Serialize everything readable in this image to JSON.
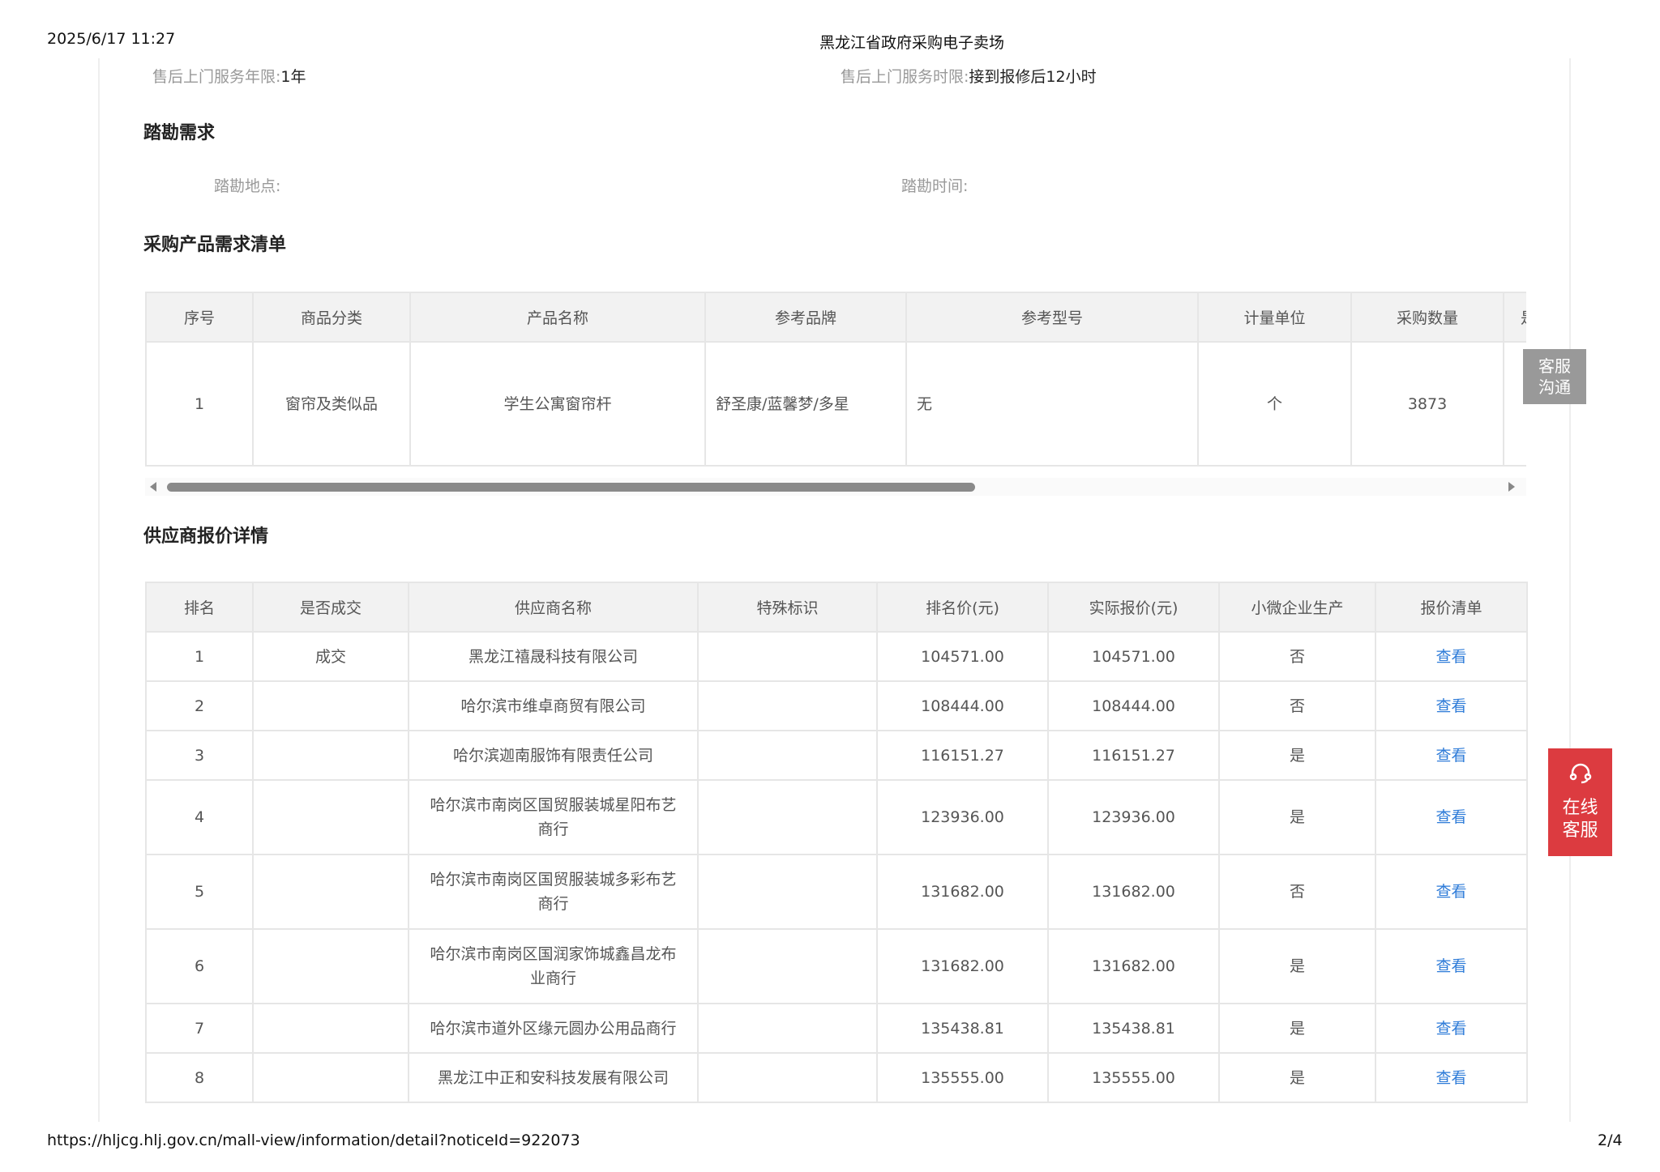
{
  "print_header": {
    "datetime": "2025/6/17 11:27",
    "title": "黑龙江省政府采购电子卖场"
  },
  "service": {
    "years_label": "售后上门服务年限:",
    "years_value": "1年",
    "time_label": "售后上门服务时限:",
    "time_value": "接到报修后12小时"
  },
  "survey": {
    "title": "踏勘需求",
    "location_label": "踏勘地点:",
    "time_label": "踏勘时间:"
  },
  "products": {
    "title": "采购产品需求清单",
    "headers": [
      "序号",
      "商品分类",
      "产品名称",
      "参考品牌",
      "参考型号",
      "计量单位",
      "采购数量",
      "是"
    ],
    "rows": [
      [
        "1",
        "窗帘及类似品",
        "学生公寓窗帘杆",
        "舒圣康/蓝馨梦/多星",
        "无",
        "个",
        "3873",
        ""
      ]
    ],
    "scroll_position_fraction": 0.0
  },
  "quotes": {
    "title": "供应商报价详情",
    "headers": [
      "排名",
      "是否成交",
      "供应商名称",
      "特殊标识",
      "排名价(元)",
      "实际报价(元)",
      "小微企业生产",
      "报价清单"
    ],
    "rows": [
      [
        "1",
        "成交",
        "黑龙江禧晟科技有限公司",
        "",
        "104571.00",
        "104571.00",
        "否",
        "查看"
      ],
      [
        "2",
        "",
        "哈尔滨市维卓商贸有限公司",
        "",
        "108444.00",
        "108444.00",
        "否",
        "查看"
      ],
      [
        "3",
        "",
        "哈尔滨迦南服饰有限责任公司",
        "",
        "116151.27",
        "116151.27",
        "是",
        "查看"
      ],
      [
        "4",
        "",
        "哈尔滨市南岗区国贸服装城星阳布艺商行",
        "",
        "123936.00",
        "123936.00",
        "是",
        "查看"
      ],
      [
        "5",
        "",
        "哈尔滨市南岗区国贸服装城多彩布艺商行",
        "",
        "131682.00",
        "131682.00",
        "否",
        "查看"
      ],
      [
        "6",
        "",
        "哈尔滨市南岗区国润家饰城鑫昌龙布业商行",
        "",
        "131682.00",
        "131682.00",
        "是",
        "查看"
      ],
      [
        "7",
        "",
        "哈尔滨市道外区缘元圆办公用品商行",
        "",
        "135438.81",
        "135438.81",
        "是",
        "查看"
      ],
      [
        "8",
        "",
        "黑龙江中正和安科技发展有限公司",
        "",
        "135555.00",
        "135555.00",
        "是",
        "查看"
      ]
    ]
  },
  "float": {
    "chat_label": "客服沟通",
    "online_label": "在线客服",
    "online_icon": "headset-icon",
    "online_color": "#dc3b40"
  },
  "print_footer": {
    "url": "https://hljcg.hlj.gov.cn/mall-view/information/detail?noticeId=922073",
    "page": "2/4"
  }
}
